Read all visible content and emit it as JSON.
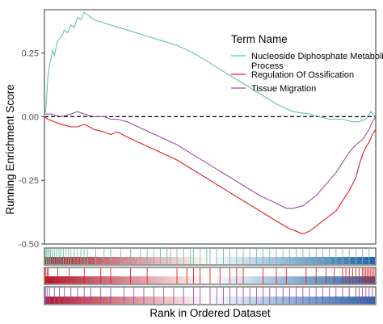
{
  "chart_data": {
    "type": "line",
    "ylabel": "Running Enrichment Score",
    "xlabel": "Rank in Ordered Dataset",
    "ylim": [
      -0.5,
      0.42
    ],
    "yticks": [
      {
        "value": 0.25,
        "label": "0.25"
      },
      {
        "value": 0.0,
        "label": "0.00"
      },
      {
        "value": -0.25,
        "label": "-0.25"
      },
      {
        "value": -0.5,
        "label": "-0.50"
      }
    ],
    "zero_line": "dashed",
    "legend": {
      "title": "Term Name",
      "placement": "top-right",
      "entries": [
        {
          "line1": "Nucleoside Diphosphate Metaboli",
          "line2": "Process",
          "color": "#66c2a5"
        },
        {
          "line1": "Regulation Of Ossification",
          "line2": "",
          "color": "#e41a1c"
        },
        {
          "line1": "Tissue Migration",
          "line2": "",
          "color": "#984ea3"
        }
      ]
    },
    "x_range": [
      0,
      1
    ],
    "series": [
      {
        "key": "nucleoside",
        "color": "#66c2a5",
        "points": [
          [
            0,
            0
          ],
          [
            0.005,
            0.04
          ],
          [
            0.01,
            0.15
          ],
          [
            0.015,
            0.2
          ],
          [
            0.025,
            0.26
          ],
          [
            0.03,
            0.24
          ],
          [
            0.04,
            0.3
          ],
          [
            0.05,
            0.31
          ],
          [
            0.06,
            0.34
          ],
          [
            0.07,
            0.33
          ],
          [
            0.08,
            0.36
          ],
          [
            0.09,
            0.35
          ],
          [
            0.1,
            0.39
          ],
          [
            0.11,
            0.38
          ],
          [
            0.12,
            0.41
          ],
          [
            0.13,
            0.4
          ],
          [
            0.15,
            0.38
          ],
          [
            0.2,
            0.36
          ],
          [
            0.25,
            0.34
          ],
          [
            0.3,
            0.32
          ],
          [
            0.35,
            0.3
          ],
          [
            0.4,
            0.28
          ],
          [
            0.45,
            0.25
          ],
          [
            0.5,
            0.21
          ],
          [
            0.55,
            0.17
          ],
          [
            0.6,
            0.13
          ],
          [
            0.65,
            0.09
          ],
          [
            0.7,
            0.05
          ],
          [
            0.75,
            0.02
          ],
          [
            0.8,
            0.01
          ],
          [
            0.83,
            0.0
          ],
          [
            0.86,
            -0.01
          ],
          [
            0.9,
            -0.01
          ],
          [
            0.93,
            -0.02
          ],
          [
            0.95,
            -0.02
          ],
          [
            0.97,
            -0.01
          ],
          [
            0.985,
            0.02
          ],
          [
            0.99,
            0.01
          ],
          [
            1.0,
            0.0
          ]
        ]
      },
      {
        "key": "ossification",
        "color": "#e41a1c",
        "points": [
          [
            0,
            0
          ],
          [
            0.01,
            -0.01
          ],
          [
            0.03,
            -0.02
          ],
          [
            0.05,
            -0.03
          ],
          [
            0.08,
            -0.04
          ],
          [
            0.1,
            -0.04
          ],
          [
            0.12,
            -0.03
          ],
          [
            0.15,
            -0.05
          ],
          [
            0.18,
            -0.06
          ],
          [
            0.2,
            -0.07
          ],
          [
            0.22,
            -0.06
          ],
          [
            0.25,
            -0.08
          ],
          [
            0.3,
            -0.11
          ],
          [
            0.35,
            -0.14
          ],
          [
            0.4,
            -0.17
          ],
          [
            0.45,
            -0.21
          ],
          [
            0.5,
            -0.25
          ],
          [
            0.55,
            -0.29
          ],
          [
            0.6,
            -0.33
          ],
          [
            0.65,
            -0.37
          ],
          [
            0.7,
            -0.41
          ],
          [
            0.74,
            -0.44
          ],
          [
            0.76,
            -0.45
          ],
          [
            0.78,
            -0.46
          ],
          [
            0.8,
            -0.45
          ],
          [
            0.82,
            -0.43
          ],
          [
            0.84,
            -0.41
          ],
          [
            0.86,
            -0.39
          ],
          [
            0.88,
            -0.37
          ],
          [
            0.9,
            -0.33
          ],
          [
            0.92,
            -0.29
          ],
          [
            0.94,
            -0.24
          ],
          [
            0.95,
            -0.19
          ],
          [
            0.96,
            -0.15
          ],
          [
            0.97,
            -0.12
          ],
          [
            0.98,
            -0.1
          ],
          [
            0.99,
            -0.07
          ],
          [
            1.0,
            -0.05
          ]
        ]
      },
      {
        "key": "tissue",
        "color": "#984ea3",
        "points": [
          [
            0,
            0.01
          ],
          [
            0.02,
            0.01
          ],
          [
            0.05,
            0.0
          ],
          [
            0.08,
            0.01
          ],
          [
            0.1,
            0.02
          ],
          [
            0.12,
            0.01
          ],
          [
            0.15,
            0.0
          ],
          [
            0.18,
            0.0
          ],
          [
            0.2,
            -0.01
          ],
          [
            0.22,
            -0.01
          ],
          [
            0.25,
            -0.02
          ],
          [
            0.3,
            -0.05
          ],
          [
            0.35,
            -0.08
          ],
          [
            0.4,
            -0.11
          ],
          [
            0.45,
            -0.15
          ],
          [
            0.5,
            -0.19
          ],
          [
            0.55,
            -0.23
          ],
          [
            0.6,
            -0.27
          ],
          [
            0.65,
            -0.31
          ],
          [
            0.7,
            -0.34
          ],
          [
            0.73,
            -0.36
          ],
          [
            0.75,
            -0.36
          ],
          [
            0.78,
            -0.35
          ],
          [
            0.8,
            -0.33
          ],
          [
            0.82,
            -0.31
          ],
          [
            0.84,
            -0.28
          ],
          [
            0.86,
            -0.25
          ],
          [
            0.88,
            -0.22
          ],
          [
            0.9,
            -0.18
          ],
          [
            0.92,
            -0.14
          ],
          [
            0.94,
            -0.11
          ],
          [
            0.96,
            -0.09
          ],
          [
            0.97,
            -0.07
          ],
          [
            0.98,
            -0.05
          ],
          [
            0.99,
            -0.02
          ],
          [
            1.0,
            0.0
          ]
        ]
      }
    ],
    "rug_tracks": [
      {
        "key": "nucleoside",
        "color": "#66c2a5",
        "hits": [
          0.002,
          0.006,
          0.01,
          0.014,
          0.018,
          0.024,
          0.03,
          0.037,
          0.044,
          0.05,
          0.057,
          0.065,
          0.072,
          0.08,
          0.09,
          0.1,
          0.11,
          0.12,
          0.13,
          0.155,
          0.18,
          0.2,
          0.23,
          0.26,
          0.29,
          0.31,
          0.33,
          0.35,
          0.37,
          0.38,
          0.4,
          0.42,
          0.44,
          0.45,
          0.47,
          0.49,
          0.5,
          0.52,
          0.54,
          0.56,
          0.58,
          0.6,
          0.62,
          0.64,
          0.66,
          0.68,
          0.7,
          0.72,
          0.74,
          0.76,
          0.78,
          0.8,
          0.82,
          0.84,
          0.86,
          0.88,
          0.9,
          0.92,
          0.94,
          0.96,
          0.98
        ]
      },
      {
        "key": "ossification",
        "color": "#e41a1c",
        "hits": [
          0.003,
          0.008,
          0.012,
          0.04,
          0.075,
          0.12,
          0.17,
          0.2,
          0.26,
          0.31,
          0.4,
          0.43,
          0.45,
          0.47,
          0.5,
          0.53,
          0.56,
          0.58,
          0.6,
          0.66,
          0.7,
          0.73,
          0.79,
          0.82,
          0.85,
          0.875,
          0.9,
          0.91,
          0.92,
          0.93,
          0.94,
          0.95,
          0.96,
          0.965,
          0.97,
          0.975,
          0.98,
          0.985,
          0.99,
          0.995
        ]
      },
      {
        "key": "tissue",
        "color": "#984ea3",
        "hits": [
          0.003,
          0.008,
          0.015,
          0.03,
          0.045,
          0.06,
          0.08,
          0.1,
          0.12,
          0.14,
          0.17,
          0.2,
          0.24,
          0.27,
          0.3,
          0.33,
          0.36,
          0.39,
          0.42,
          0.45,
          0.47,
          0.5,
          0.52,
          0.54,
          0.56,
          0.58,
          0.6,
          0.62,
          0.64,
          0.66,
          0.68,
          0.7,
          0.72,
          0.74,
          0.76,
          0.78,
          0.8,
          0.82,
          0.84,
          0.86,
          0.88,
          0.9,
          0.92,
          0.94,
          0.95,
          0.96,
          0.97,
          0.98,
          0.99
        ]
      }
    ],
    "rank_gradient": {
      "left_color": "#b2182b",
      "mid_color": "#ffffff",
      "right_color": "#2166ac"
    }
  }
}
